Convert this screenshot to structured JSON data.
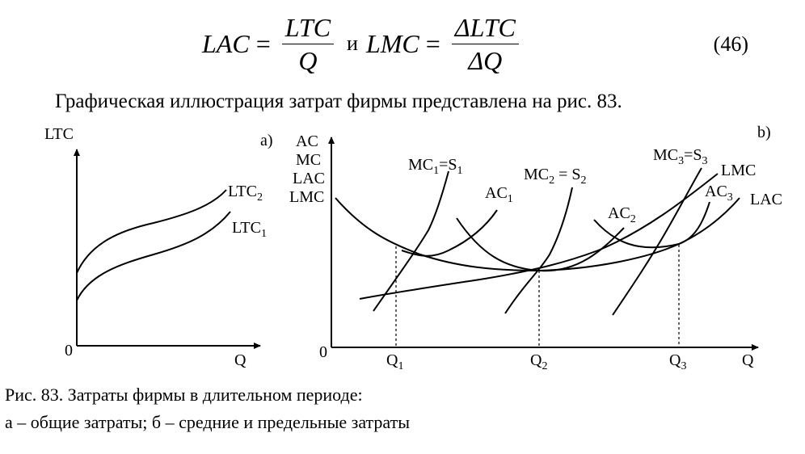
{
  "formula": {
    "lac_lhs": "LAC",
    "lac_num": "LTC",
    "lac_den": "Q",
    "conjunction": "и",
    "lmc_lhs": "LMC",
    "lmc_num": "ΔLTC",
    "lmc_den": "ΔQ",
    "eq_number": "(46)"
  },
  "intro_text": "Графическая иллюстрация затрат фирмы представлена на рис. 83.",
  "chart_a": {
    "panel_label": "a)",
    "y_axis_label": "LTC",
    "x_axis_label": "Q",
    "origin": "0",
    "curves": [
      "LTC2",
      "LTC1"
    ]
  },
  "chart_b": {
    "panel_label": "b)",
    "y_axis_labels": [
      "AC",
      "MC",
      "LAC",
      "LMC"
    ],
    "x_axis_label": "Q",
    "origin": "0",
    "ticks": [
      "Q1",
      "Q2",
      "Q3"
    ],
    "curve_labels": [
      "MC1=S1",
      "AC1",
      "MC2 = S2",
      "AC2",
      "MC3=S3",
      "LMC",
      "AC3",
      "LAC"
    ]
  },
  "caption": {
    "line1": "Рис. 83. Затраты фирмы в длительном периоде:",
    "line2": "а – общие затраты; б – средние и предельные затраты"
  }
}
